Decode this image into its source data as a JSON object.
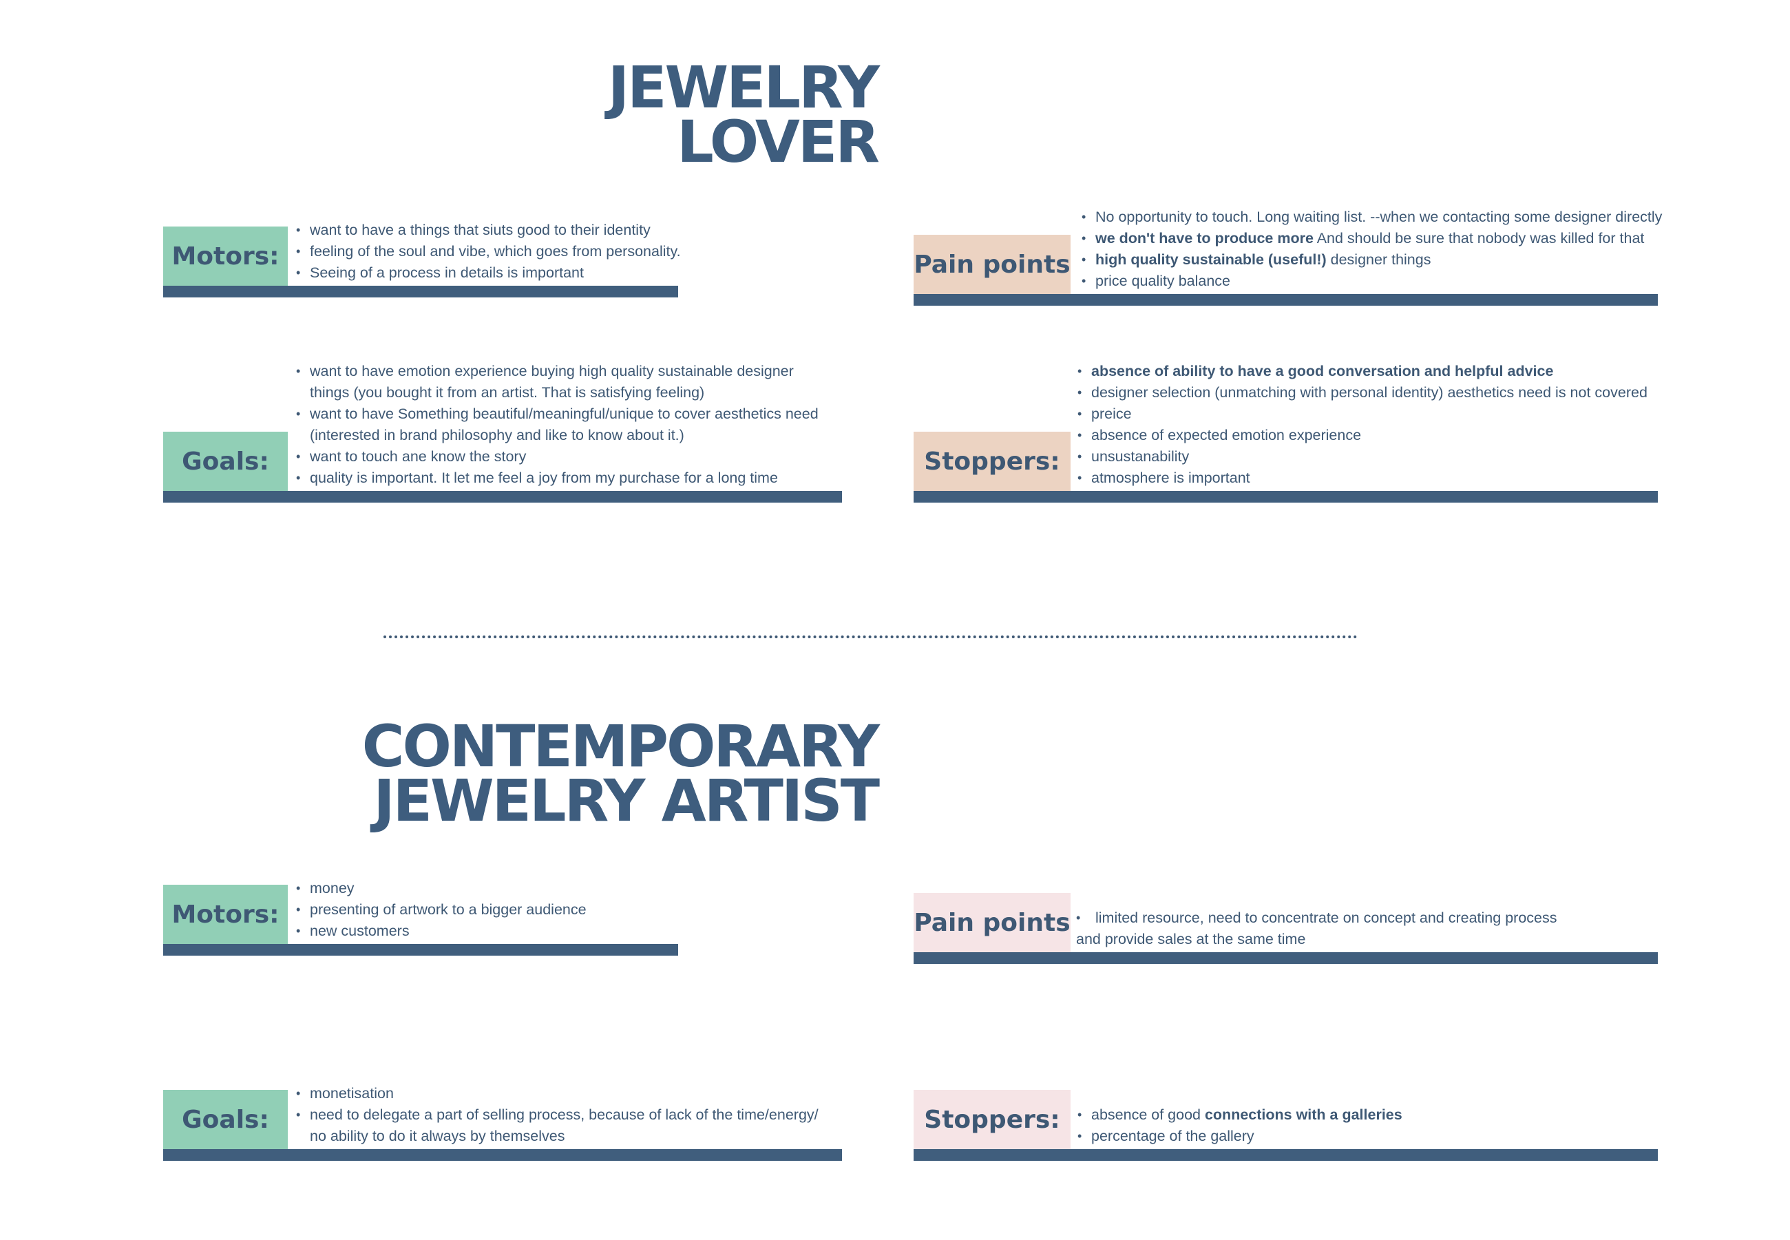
{
  "persona1": {
    "title_line1": "JEWELRY",
    "title_line2": "LOVER",
    "motors": {
      "label": "Motors:",
      "items": [
        "want to have a things that siuts good to their identity",
        "feeling of the soul and vibe, which goes from personality.",
        "Seeing of a process in details is important"
      ]
    },
    "goals": {
      "label": "Goals:",
      "items": [
        "want to have emotion experience buying high quality sustainable designer",
        "things (you bought it from an artist. That is satisfying feeling)",
        "want to have Something beautiful/meaningful/unique to cover aesthetics need",
        "(interested in brand philosophy and like to know about it.)",
        "want to touch ane know the story",
        "quality is important. It let me feel a joy from my purchase for a long time"
      ]
    },
    "pain_points": {
      "label": "Pain points",
      "item1": "No opportunity to touch. Long waiting list.  --when we contacting some designer directly",
      "item2_bold": "we don't have to produce more",
      "item2_rest": " And should be sure that nobody was killed for that",
      "item3_bold": "high quality sustainable (useful!)",
      "item3_rest": " designer things",
      "item4": "price quality balance"
    },
    "stoppers": {
      "label": "Stoppers:",
      "item1_bold": "absence of ability to have a good conversation and helpful advice",
      "item2": "designer selection (unmatching with personal identity) aesthetics need is not covered",
      "item3": "preice",
      "item4": "absence of expected emotion experience",
      "item5": "unsustanability",
      "item6": "atmosphere is important"
    }
  },
  "persona2": {
    "title_line1": "CONTEMPORARY",
    "title_line2": "JEWELRY ARTIST",
    "motors": {
      "label": "Motors:",
      "items": [
        "money",
        "presenting of artwork to a bigger audience",
        "new customers"
      ]
    },
    "goals": {
      "label": "Goals:",
      "items": [
        "monetisation",
        "need to delegate a part of selling process, because of lack of the time/energy/",
        "no ability to do it always by themselves"
      ]
    },
    "pain_points": {
      "label": "Pain points",
      "line1": "limited resource, need to concentrate on concept and creating process",
      "line2": "and provide sales at the same time"
    },
    "stoppers": {
      "label": "Stoppers:",
      "item1_pre": "absence of good ",
      "item1_bold": "connections with a galleries",
      "item2": "percentage of the gallery"
    }
  },
  "colors": {
    "primary": "#3e5874",
    "bar": "#405e7d",
    "motors_goals_label_bg": "#91cfb6",
    "persona1_pain_stop_label_bg": "#ecd3c2",
    "persona2_pain_stop_label_bg": "#f6e4e6"
  }
}
